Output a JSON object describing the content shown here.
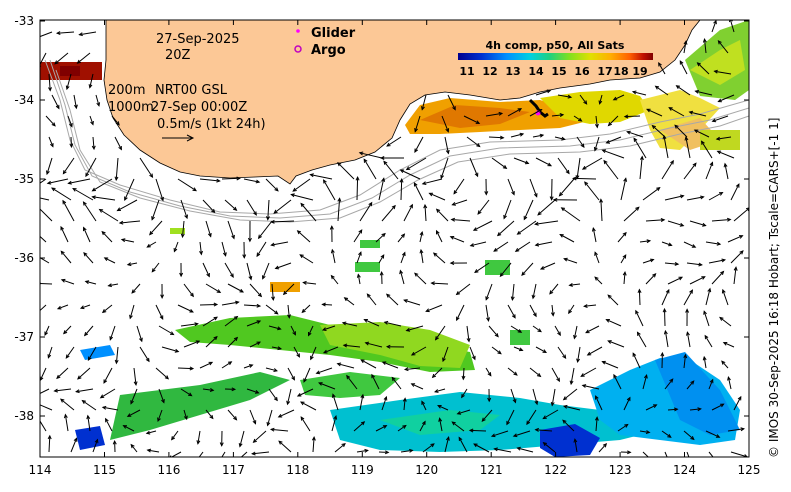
{
  "map": {
    "date_line1": "27-Sep-2025",
    "date_line2": "20Z",
    "legend_glider": "Glider",
    "legend_argo": "Argo",
    "colorbar_title": "4h comp, p50, All Sats",
    "colorbar_ticks": [
      "11",
      "12",
      "13",
      "14",
      "15",
      "16",
      "17",
      "18",
      "19"
    ],
    "colorbar_colors": [
      "#00008f",
      "#0030d0",
      "#0090ff",
      "#00d0e0",
      "#20d080",
      "#80e020",
      "#e0e000",
      "#ffb000",
      "#ff6000",
      "#c01000",
      "#800000"
    ],
    "contour_200m": "200m",
    "contour_1000m": "1000m",
    "product": "NRT00 GSL",
    "product_time": "27-Sep 00:00Z",
    "scale_text": "0.5m/s (1kt 24h)",
    "glider_color": "#ff00ff",
    "argo_color": "#c000c0",
    "land_color": "#fcc896",
    "x_ticks": [
      "114",
      "115",
      "116",
      "117",
      "118",
      "119",
      "120",
      "121",
      "122",
      "123",
      "124",
      "125"
    ],
    "y_ticks": [
      "-33",
      "-34",
      "-35",
      "-36",
      "-37",
      "-38"
    ],
    "credit": "© IMOS 30-Sep-2025 16:18 Hobart; Tscale=CARS+[-1 1]"
  }
}
